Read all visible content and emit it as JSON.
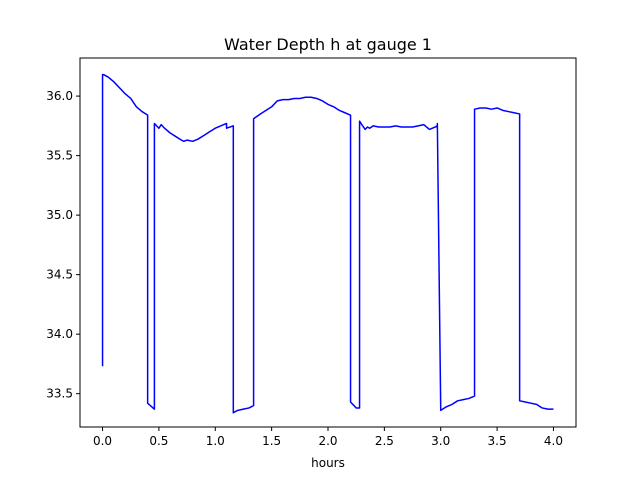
{
  "chart_data": {
    "type": "line",
    "title": "Water Depth h at gauge 1",
    "xlabel": "hours",
    "ylabel": "",
    "xlim": [
      -0.2,
      4.2
    ],
    "ylim": [
      33.22,
      36.32
    ],
    "xticks": [
      0.0,
      0.5,
      1.0,
      1.5,
      2.0,
      2.5,
      3.0,
      3.5,
      4.0
    ],
    "xtick_labels": [
      "0.0",
      "0.5",
      "1.0",
      "1.5",
      "2.0",
      "2.5",
      "3.0",
      "3.5",
      "4.0"
    ],
    "yticks": [
      33.5,
      34.0,
      34.5,
      35.0,
      35.5,
      36.0
    ],
    "ytick_labels": [
      "33.5",
      "34.0",
      "34.5",
      "35.0",
      "35.5",
      "36.0"
    ],
    "grid": false,
    "legend": false,
    "series": [
      {
        "color": "#0000ff",
        "x": [
          0.0,
          0.0,
          0.01,
          0.05,
          0.1,
          0.15,
          0.2,
          0.25,
          0.3,
          0.35,
          0.4,
          0.4,
          0.46,
          0.46,
          0.47,
          0.5,
          0.52,
          0.55,
          0.6,
          0.65,
          0.7,
          0.72,
          0.75,
          0.8,
          0.85,
          0.9,
          0.95,
          1.0,
          1.05,
          1.1,
          1.1,
          1.13,
          1.16,
          1.16,
          1.2,
          1.25,
          1.3,
          1.34,
          1.34,
          1.4,
          1.45,
          1.5,
          1.55,
          1.6,
          1.65,
          1.7,
          1.75,
          1.8,
          1.85,
          1.9,
          1.95,
          2.0,
          2.05,
          2.1,
          2.15,
          2.2,
          2.2,
          2.25,
          2.28,
          2.28,
          2.3,
          2.33,
          2.35,
          2.37,
          2.4,
          2.45,
          2.5,
          2.55,
          2.6,
          2.65,
          2.7,
          2.75,
          2.8,
          2.85,
          2.9,
          2.95,
          2.97,
          2.97,
          3.0,
          3.05,
          3.1,
          3.15,
          3.2,
          3.25,
          3.3,
          3.3,
          3.35,
          3.4,
          3.45,
          3.5,
          3.55,
          3.6,
          3.65,
          3.7,
          3.7,
          3.75,
          3.8,
          3.85,
          3.9,
          3.95,
          4.0
        ],
        "y": [
          33.73,
          36.18,
          36.18,
          36.16,
          36.12,
          36.07,
          36.02,
          35.98,
          35.91,
          35.87,
          35.84,
          33.42,
          33.37,
          35.77,
          35.76,
          35.73,
          35.76,
          35.73,
          35.69,
          35.66,
          35.63,
          35.62,
          35.63,
          35.62,
          35.64,
          35.67,
          35.7,
          35.73,
          35.75,
          35.77,
          35.73,
          35.74,
          35.75,
          33.34,
          33.36,
          33.37,
          33.38,
          33.4,
          35.81,
          35.85,
          35.88,
          35.91,
          35.96,
          35.97,
          35.97,
          35.98,
          35.98,
          35.99,
          35.99,
          35.98,
          35.96,
          35.93,
          35.91,
          35.88,
          35.86,
          35.84,
          33.43,
          33.38,
          33.38,
          35.79,
          35.76,
          35.72,
          35.74,
          35.73,
          35.75,
          35.74,
          35.74,
          35.74,
          35.75,
          35.74,
          35.74,
          35.74,
          35.75,
          35.76,
          35.72,
          35.74,
          35.75,
          35.77,
          33.36,
          33.39,
          33.41,
          33.44,
          33.45,
          33.46,
          33.48,
          35.89,
          35.9,
          35.9,
          35.89,
          35.9,
          35.88,
          35.87,
          35.86,
          35.85,
          33.44,
          33.43,
          33.42,
          33.41,
          33.38,
          33.37,
          33.37
        ]
      }
    ]
  }
}
